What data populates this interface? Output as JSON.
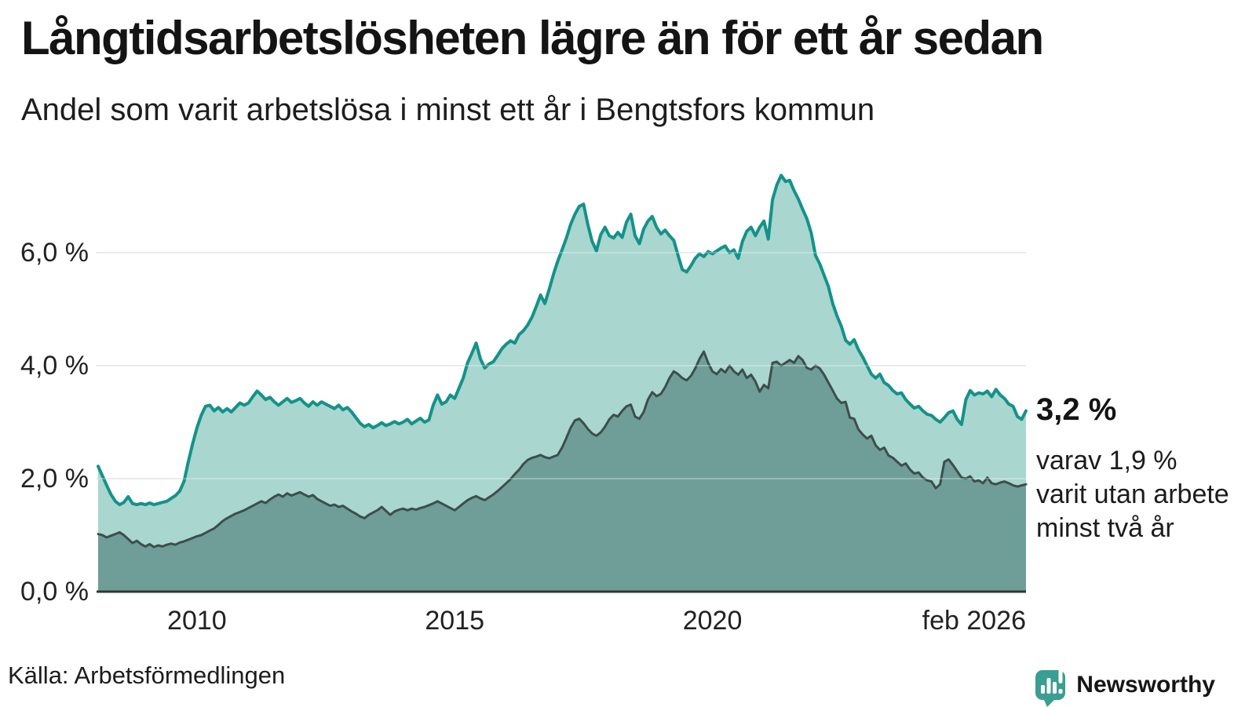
{
  "header": {
    "title": "Långtidsarbetslösheten lägre än för ett år sedan",
    "subtitle": "Andel som varit arbetslösa i minst ett år i Bengtsfors kommun"
  },
  "annotations": {
    "latest_value": "3,2 %",
    "note": "varav 1,9 %\nvarit utan arbete\nminst två år"
  },
  "source": {
    "label": "Källa: Arbetsförmedlingen"
  },
  "branding": {
    "name": "Newsworthy",
    "color": "#3b9e92",
    "icon": "bar-chart-speech-bubble"
  },
  "colors": {
    "background": "#ffffff",
    "grid": "#e3e3e8",
    "axis": "#2c3a37",
    "text": "#1c1c1c",
    "series1_line": "#14928a",
    "series1_fill": "#a9d6cf",
    "series2_line": "#3c4e4b",
    "series2_fill": "#6f9e98"
  },
  "chart_data": {
    "type": "area",
    "title": "Långtidsarbetslösheten lägre än för ett år sedan",
    "xlabel": "",
    "ylabel": "",
    "xlim": [
      2008.083,
      2026.083
    ],
    "ylim": [
      0,
      7.6
    ],
    "grid": "horizontal",
    "legend": "none",
    "x_ticks": [
      {
        "t": 2010,
        "label": "2010",
        "align": "center"
      },
      {
        "t": 2015,
        "label": "2015",
        "align": "center"
      },
      {
        "t": 2020,
        "label": "2020",
        "align": "center"
      },
      {
        "t": 2026.083,
        "label": "feb 2026",
        "align": "right"
      }
    ],
    "y_ticks": [
      {
        "value": 0,
        "label": "0,0 %"
      },
      {
        "value": 2,
        "label": "2,0 %"
      },
      {
        "value": 4,
        "label": "4,0 %"
      },
      {
        "value": 6,
        "label": "6,0 %"
      }
    ],
    "t0": 2008.083,
    "dt_years": 0.08333,
    "series": [
      {
        "name": "Andel arbetslösa minst ett år",
        "latest_value_pct": 3.2,
        "values": [
          2.22,
          2.05,
          1.88,
          1.72,
          1.6,
          1.54,
          1.58,
          1.68,
          1.56,
          1.54,
          1.56,
          1.54,
          1.57,
          1.54,
          1.56,
          1.58,
          1.6,
          1.65,
          1.7,
          1.78,
          1.95,
          2.3,
          2.62,
          2.9,
          3.12,
          3.28,
          3.3,
          3.2,
          3.26,
          3.18,
          3.24,
          3.18,
          3.26,
          3.34,
          3.3,
          3.34,
          3.45,
          3.55,
          3.48,
          3.4,
          3.44,
          3.36,
          3.3,
          3.36,
          3.42,
          3.35,
          3.38,
          3.42,
          3.34,
          3.28,
          3.36,
          3.3,
          3.36,
          3.32,
          3.28,
          3.24,
          3.3,
          3.22,
          3.26,
          3.18,
          3.08,
          2.98,
          2.92,
          2.96,
          2.9,
          2.94,
          2.99,
          2.94,
          2.97,
          3.01,
          2.97,
          3.0,
          3.05,
          2.97,
          3.02,
          3.07,
          3.0,
          3.04,
          3.3,
          3.48,
          3.32,
          3.36,
          3.48,
          3.42,
          3.6,
          3.78,
          4.05,
          4.22,
          4.4,
          4.12,
          3.96,
          4.03,
          4.07,
          4.18,
          4.3,
          4.38,
          4.44,
          4.4,
          4.55,
          4.62,
          4.72,
          4.86,
          5.05,
          5.25,
          5.1,
          5.35,
          5.62,
          5.85,
          6.05,
          6.26,
          6.5,
          6.68,
          6.82,
          6.86,
          6.5,
          6.2,
          6.03,
          6.32,
          6.45,
          6.3,
          6.26,
          6.36,
          6.27,
          6.54,
          6.68,
          6.3,
          6.16,
          6.42,
          6.56,
          6.64,
          6.45,
          6.33,
          6.4,
          6.3,
          6.22,
          5.95,
          5.7,
          5.66,
          5.77,
          5.9,
          5.98,
          5.93,
          6.02,
          5.98,
          6.03,
          6.08,
          6.12,
          6.0,
          6.05,
          5.9,
          6.2,
          6.38,
          6.45,
          6.3,
          6.45,
          6.56,
          6.24,
          6.94,
          7.2,
          7.37,
          7.26,
          7.28,
          7.1,
          6.95,
          6.77,
          6.6,
          6.35,
          5.95,
          5.8,
          5.6,
          5.4,
          5.1,
          4.88,
          4.7,
          4.45,
          4.38,
          4.46,
          4.28,
          4.15,
          4.0,
          3.85,
          3.78,
          3.85,
          3.7,
          3.65,
          3.56,
          3.5,
          3.52,
          3.4,
          3.32,
          3.25,
          3.28,
          3.2,
          3.14,
          3.12,
          3.05,
          3.0,
          3.08,
          3.17,
          3.2,
          3.05,
          2.96,
          3.4,
          3.56,
          3.48,
          3.52,
          3.5,
          3.55,
          3.45,
          3.58,
          3.48,
          3.42,
          3.32,
          3.28,
          3.1,
          3.05,
          3.2
        ]
      },
      {
        "name": "Andel arbetslösa minst två år",
        "latest_value_pct": 1.9,
        "values": [
          1.02,
          1.0,
          0.96,
          0.99,
          1.02,
          1.05,
          1.0,
          0.93,
          0.86,
          0.9,
          0.84,
          0.8,
          0.84,
          0.79,
          0.82,
          0.8,
          0.83,
          0.85,
          0.83,
          0.87,
          0.89,
          0.92,
          0.95,
          0.98,
          1.0,
          1.04,
          1.08,
          1.12,
          1.18,
          1.25,
          1.3,
          1.34,
          1.38,
          1.41,
          1.44,
          1.48,
          1.52,
          1.56,
          1.6,
          1.57,
          1.63,
          1.68,
          1.72,
          1.68,
          1.74,
          1.7,
          1.73,
          1.76,
          1.72,
          1.68,
          1.71,
          1.64,
          1.6,
          1.56,
          1.52,
          1.54,
          1.5,
          1.52,
          1.47,
          1.42,
          1.38,
          1.33,
          1.3,
          1.36,
          1.4,
          1.44,
          1.5,
          1.43,
          1.36,
          1.42,
          1.45,
          1.47,
          1.44,
          1.47,
          1.45,
          1.48,
          1.5,
          1.53,
          1.56,
          1.6,
          1.56,
          1.52,
          1.48,
          1.44,
          1.5,
          1.56,
          1.62,
          1.66,
          1.69,
          1.65,
          1.62,
          1.67,
          1.72,
          1.78,
          1.85,
          1.92,
          1.99,
          2.08,
          2.16,
          2.26,
          2.33,
          2.37,
          2.39,
          2.42,
          2.38,
          2.36,
          2.39,
          2.42,
          2.55,
          2.72,
          2.9,
          3.03,
          3.06,
          2.98,
          2.88,
          2.8,
          2.76,
          2.82,
          2.92,
          3.05,
          3.13,
          3.1,
          3.2,
          3.28,
          3.31,
          3.1,
          3.06,
          3.18,
          3.4,
          3.53,
          3.46,
          3.5,
          3.62,
          3.78,
          3.9,
          3.85,
          3.78,
          3.74,
          3.82,
          3.95,
          4.12,
          4.25,
          4.05,
          3.9,
          3.85,
          3.94,
          3.88,
          4.0,
          3.9,
          3.84,
          3.93,
          3.78,
          3.84,
          3.72,
          3.54,
          3.66,
          3.6,
          4.05,
          4.07,
          4.0,
          4.05,
          4.1,
          4.05,
          4.17,
          4.1,
          3.96,
          3.93,
          4.0,
          3.95,
          3.84,
          3.7,
          3.56,
          3.42,
          3.34,
          3.36,
          3.08,
          3.06,
          2.87,
          2.78,
          2.71,
          2.76,
          2.59,
          2.51,
          2.55,
          2.41,
          2.37,
          2.3,
          2.23,
          2.27,
          2.16,
          2.09,
          2.11,
          2.02,
          1.97,
          1.95,
          1.83,
          1.9,
          2.3,
          2.34,
          2.24,
          2.13,
          2.02,
          2.0,
          2.04,
          1.95,
          1.97,
          1.92,
          2.02,
          1.92,
          1.9,
          1.93,
          1.95,
          1.92,
          1.88,
          1.86,
          1.88,
          1.9
        ]
      }
    ]
  }
}
